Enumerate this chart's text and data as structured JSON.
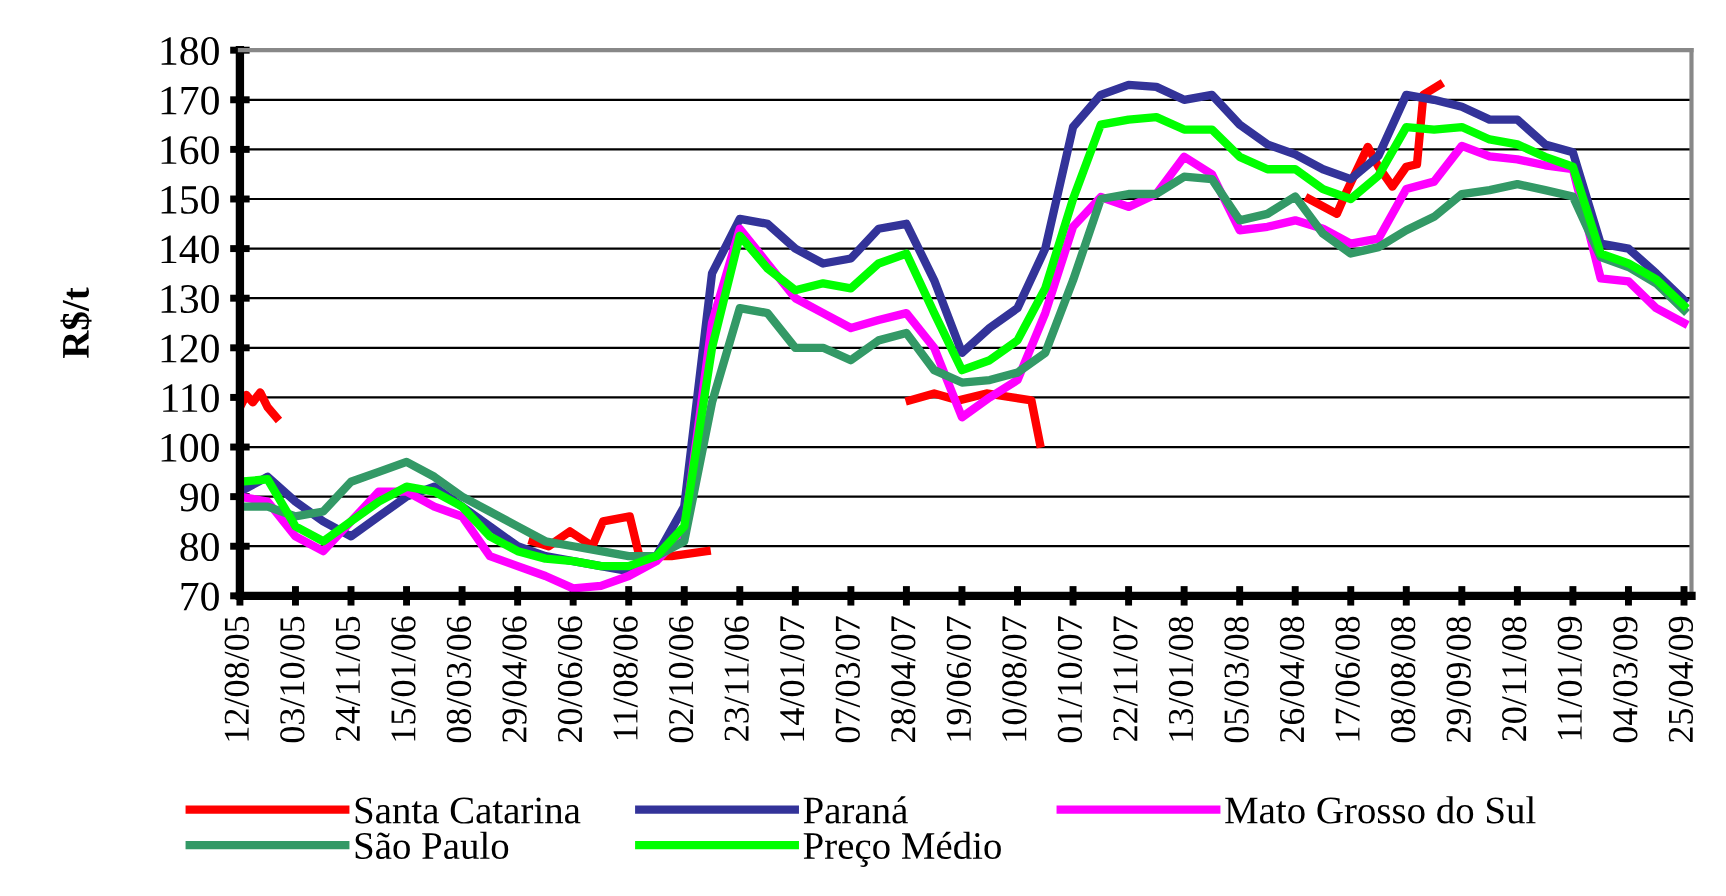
{
  "chart_data": {
    "type": "line",
    "ylabel": "R$/t",
    "x": [
      "2005-08-12",
      "2005-09-07",
      "2005-10-03",
      "2005-10-29",
      "2005-11-24",
      "2005-12-20",
      "2006-01-15",
      "2006-02-10",
      "2006-03-08",
      "2006-04-03",
      "2006-04-29",
      "2006-05-25",
      "2006-06-20",
      "2006-07-16",
      "2006-08-11",
      "2006-09-06",
      "2006-10-02",
      "2006-10-28",
      "2006-11-23",
      "2006-12-19",
      "2007-01-14",
      "2007-02-09",
      "2007-03-07",
      "2007-04-02",
      "2007-04-28",
      "2007-05-24",
      "2007-06-19",
      "2007-07-15",
      "2007-08-10",
      "2007-09-05",
      "2007-10-01",
      "2007-10-27",
      "2007-11-22",
      "2007-12-18",
      "2008-01-13",
      "2008-02-08",
      "2008-03-05",
      "2008-03-31",
      "2008-04-26",
      "2008-05-22",
      "2008-06-17",
      "2008-07-13",
      "2008-08-08",
      "2008-09-03",
      "2008-09-29",
      "2008-10-25",
      "2008-11-20",
      "2008-12-16",
      "2009-01-11",
      "2009-02-06",
      "2009-03-04",
      "2009-03-30",
      "2009-04-25"
    ],
    "series": [
      {
        "name": "Santa Catarina",
        "color": "#ff0000",
        "x": [
          "2005-08-12",
          "2005-08-18",
          "2005-08-24",
          "2005-08-31",
          "2005-09-07",
          "2005-09-15",
          "2006-01-01",
          "2006-05-13",
          "2006-05-28",
          "2006-06-17",
          "2006-07-08",
          "2006-07-18",
          "2006-08-12",
          "2006-08-21",
          "2006-09-20",
          "2006-10-23",
          "2007-01-01",
          "2007-05-01",
          "2007-05-24",
          "2007-06-16",
          "2007-07-12",
          "2007-08-05",
          "2007-08-23",
          "2007-08-31",
          "2008-01-01",
          "2008-05-09",
          "2008-06-04",
          "2008-06-12",
          "2008-07-03",
          "2008-07-13",
          "2008-07-26",
          "2008-08-08",
          "2008-08-18",
          "2008-08-24",
          "2008-09-08"
        ],
        "values": [
          108,
          110.5,
          109,
          111,
          108,
          106,
          null,
          81,
          80,
          83,
          80,
          85,
          86,
          78,
          78,
          79,
          null,
          109.4,
          110.8,
          109.4,
          110.8,
          110,
          109.4,
          100.7,
          null,
          150,
          147,
          151,
          160.5,
          156.5,
          152.5,
          156.5,
          157,
          171,
          173
        ]
      },
      {
        "name": "Paraná",
        "color": "#333399",
        "values": [
          91,
          94,
          89,
          85,
          82,
          86,
          90,
          92,
          88,
          84,
          80,
          78,
          77,
          76,
          75,
          78,
          88,
          135,
          146,
          145,
          140,
          137,
          138,
          144,
          145,
          133.6,
          119,
          124,
          128,
          140,
          164.5,
          171,
          173,
          172.6,
          170,
          171,
          165,
          161,
          159,
          156,
          154,
          158.7,
          171,
          170,
          168.6,
          166,
          166,
          161,
          159.4,
          141,
          140,
          135,
          129.6
        ]
      },
      {
        "name": "Mato Grosso do Sul",
        "color": "#ff00ff",
        "values": [
          90,
          89,
          82,
          79,
          85,
          91,
          91,
          88,
          86,
          78,
          76,
          74,
          71.5,
          72,
          74,
          77,
          83,
          125,
          144,
          137,
          130,
          127,
          124,
          125.6,
          127,
          120,
          106,
          110,
          113.5,
          127,
          144.4,
          150.4,
          148.4,
          151,
          158.5,
          155,
          143.7,
          144.4,
          145.7,
          144,
          141,
          142,
          152,
          153.5,
          160.7,
          158.6,
          158,
          156.8,
          156,
          134,
          133.4,
          128,
          125
        ]
      },
      {
        "name": "São Paulo",
        "color": "#339966",
        "values": [
          88,
          88,
          86,
          87,
          93,
          95,
          97,
          94,
          90,
          87,
          84,
          81,
          80,
          79,
          78,
          78,
          81,
          109,
          128,
          127,
          120,
          120,
          117.5,
          121.5,
          123,
          115.5,
          113,
          113.5,
          115,
          119,
          133.6,
          150,
          151,
          151,
          154.5,
          154,
          145.7,
          147,
          150.5,
          143,
          139,
          140.3,
          143.7,
          146.4,
          151,
          151.8,
          153,
          151.8,
          150.5,
          138.3,
          136.3,
          133,
          127.6
        ]
      },
      {
        "name": "Preço Médio",
        "color": "#00ff00",
        "values": [
          93,
          93.5,
          84,
          81,
          85,
          89,
          92,
          91,
          88,
          82,
          79,
          77.5,
          77,
          76,
          76,
          78,
          84,
          120,
          142.6,
          136,
          131.6,
          133,
          132,
          137,
          139,
          127,
          115.5,
          117.5,
          121.5,
          132,
          150,
          165,
          166,
          166.5,
          164,
          164,
          158.5,
          156,
          156,
          152,
          150,
          154.7,
          164.5,
          164,
          164.5,
          162,
          161,
          158.5,
          156.5,
          139,
          137,
          133.8,
          128.5
        ]
      }
    ],
    "xlim": [
      "2005-08-12",
      "2009-05-02"
    ],
    "xticks": [
      {
        "value": "2005-08-12",
        "label": "12/08/05"
      },
      {
        "value": "2005-10-03",
        "label": "03/10/05"
      },
      {
        "value": "2005-11-24",
        "label": "24/11/05"
      },
      {
        "value": "2006-01-15",
        "label": "15/01/06"
      },
      {
        "value": "2006-03-08",
        "label": "08/03/06"
      },
      {
        "value": "2006-04-29",
        "label": "29/04/06"
      },
      {
        "value": "2006-06-20",
        "label": "20/06/06"
      },
      {
        "value": "2006-08-11",
        "label": "11/08/06"
      },
      {
        "value": "2006-10-02",
        "label": "02/10/06"
      },
      {
        "value": "2006-11-23",
        "label": "23/11/06"
      },
      {
        "value": "2007-01-14",
        "label": "14/01/07"
      },
      {
        "value": "2007-03-07",
        "label": "07/03/07"
      },
      {
        "value": "2007-04-28",
        "label": "28/04/07"
      },
      {
        "value": "2007-06-19",
        "label": "19/06/07"
      },
      {
        "value": "2007-08-10",
        "label": "10/08/07"
      },
      {
        "value": "2007-10-01",
        "label": "01/10/07"
      },
      {
        "value": "2007-11-22",
        "label": "22/11/07"
      },
      {
        "value": "2008-01-13",
        "label": "13/01/08"
      },
      {
        "value": "2008-03-05",
        "label": "05/03/08"
      },
      {
        "value": "2008-04-26",
        "label": "26/04/08"
      },
      {
        "value": "2008-06-17",
        "label": "17/06/08"
      },
      {
        "value": "2008-08-08",
        "label": "08/08/08"
      },
      {
        "value": "2008-09-29",
        "label": "29/09/08"
      },
      {
        "value": "2008-11-20",
        "label": "20/11/08"
      },
      {
        "value": "2009-01-11",
        "label": "11/01/09"
      },
      {
        "value": "2009-03-04",
        "label": "04/03/09"
      },
      {
        "value": "2009-04-25",
        "label": "25/04/09"
      }
    ],
    "ylim": [
      70,
      180
    ],
    "yticks": [
      70,
      80,
      90,
      100,
      110,
      120,
      130,
      140,
      150,
      160,
      170,
      180
    ],
    "grid": "y",
    "legend": "bottom",
    "marker": "none",
    "line_style": "solid"
  }
}
